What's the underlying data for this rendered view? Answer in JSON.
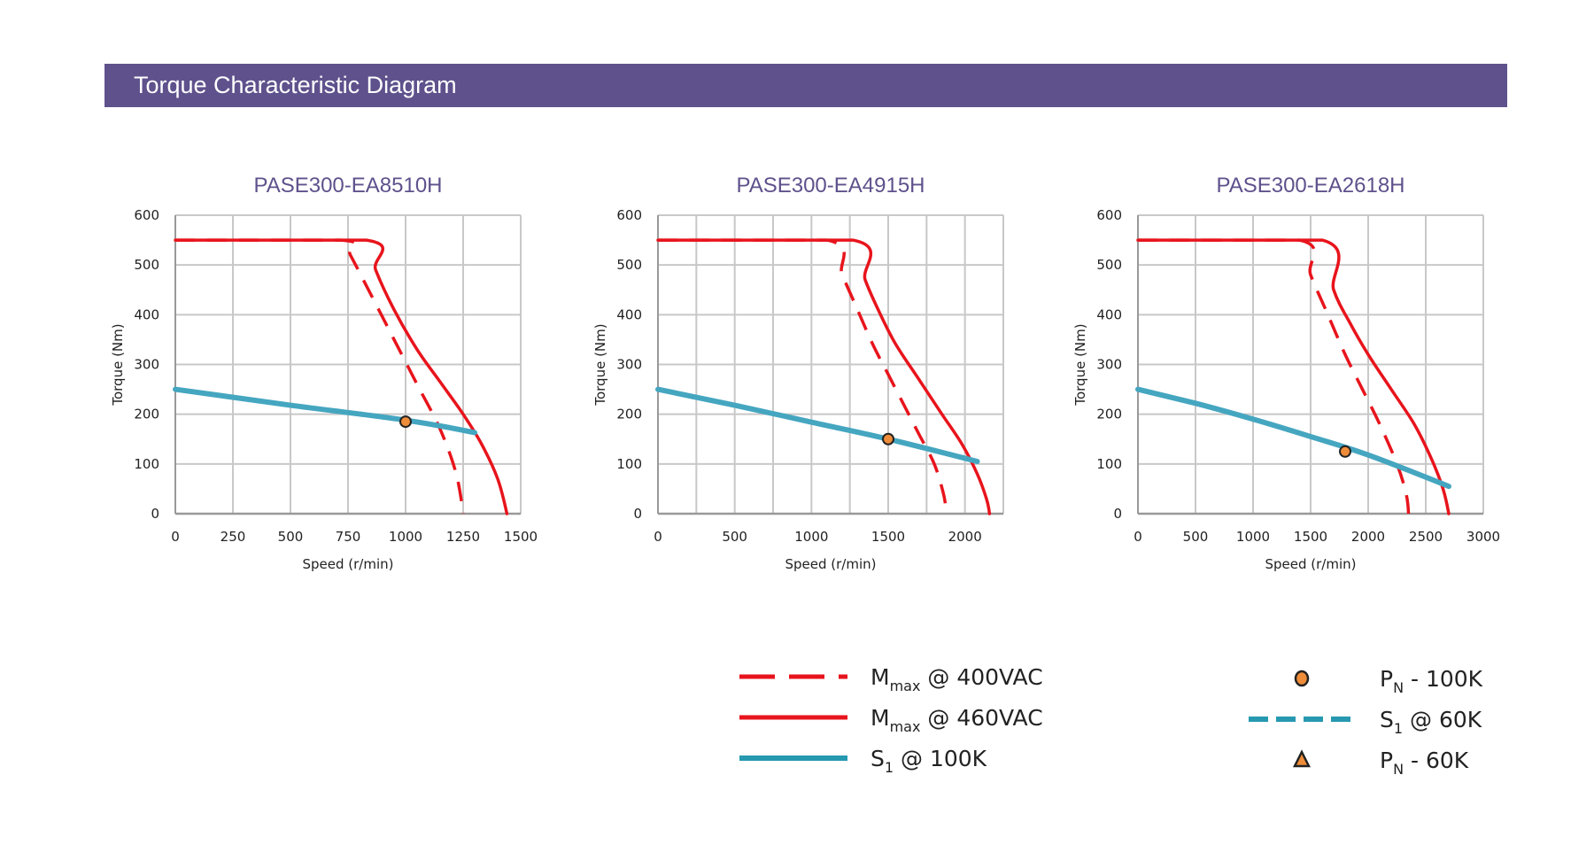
{
  "header": {
    "title": "Torque Characteristic Diagram"
  },
  "colors": {
    "banner": "#5f518c",
    "mmax": "#e8141c",
    "s1": "#45a6c0",
    "s1_60k": "#2699b0",
    "pn": "#ee8c3a",
    "grid": "#c8c8c8"
  },
  "chart_data": [
    {
      "type": "line",
      "title": "PASE300-EA8510H",
      "xlabel": "Speed (r/min)",
      "ylabel": "Torque (Nm)",
      "xlim": [
        0,
        1500
      ],
      "ylim": [
        0,
        600
      ],
      "grid": true,
      "xticks": [
        0,
        250,
        500,
        750,
        1000,
        1250,
        1500
      ],
      "xgrid_step": 250,
      "yticks": [
        0,
        100,
        200,
        300,
        400,
        500,
        600
      ],
      "series": [
        {
          "name": "Mmax @ 400VAC",
          "style": "dashed",
          "x": [
            0,
            720,
            760,
            850,
            950,
            1050,
            1150,
            1220,
            1250
          ],
          "y": [
            550,
            550,
            520,
            440,
            350,
            260,
            170,
            80,
            0
          ]
        },
        {
          "name": "Mmax @ 460VAC",
          "style": "solid",
          "x": [
            0,
            830,
            870,
            950,
            1050,
            1150,
            1250,
            1330,
            1400,
            1440
          ],
          "y": [
            550,
            550,
            490,
            410,
            330,
            265,
            200,
            140,
            70,
            0
          ]
        },
        {
          "name": "S1 @ 100K",
          "style": "solid",
          "x": [
            0,
            500,
            1000,
            1300
          ],
          "y": [
            250,
            218,
            188,
            163
          ]
        }
      ],
      "points": [
        {
          "name": "PN - 100K",
          "x": 1000,
          "y": 185
        }
      ]
    },
    {
      "type": "line",
      "title": "PASE300-EA4915H",
      "xlabel": "Speed (r/min)",
      "ylabel": "Torque (Nm)",
      "xlim": [
        0,
        2250
      ],
      "ylim": [
        0,
        600
      ],
      "grid": true,
      "xticks": [
        0,
        500,
        1000,
        1500,
        2000
      ],
      "xgrid_step": 250,
      "yticks": [
        0,
        100,
        200,
        300,
        400,
        500,
        600
      ],
      "series": [
        {
          "name": "Mmax @ 400VAC",
          "style": "dashed",
          "x": [
            0,
            1100,
            1200,
            1300,
            1400,
            1500,
            1600,
            1700,
            1800,
            1860,
            1880
          ],
          "y": [
            550,
            550,
            480,
            410,
            340,
            280,
            220,
            160,
            100,
            40,
            0
          ]
        },
        {
          "name": "Mmax @ 460VAC",
          "style": "solid",
          "x": [
            0,
            1270,
            1350,
            1450,
            1550,
            1700,
            1850,
            1980,
            2080,
            2140,
            2160
          ],
          "y": [
            550,
            550,
            470,
            400,
            340,
            270,
            200,
            140,
            80,
            30,
            0
          ]
        },
        {
          "name": "S1 @ 100K",
          "style": "solid",
          "x": [
            0,
            500,
            1000,
            1500,
            2080
          ],
          "y": [
            250,
            218,
            184,
            150,
            105
          ]
        }
      ],
      "points": [
        {
          "name": "PN - 100K",
          "x": 1500,
          "y": 150
        }
      ]
    },
    {
      "type": "line",
      "title": "PASE300-EA2618H",
      "xlabel": "Speed (r/min)",
      "ylabel": "Torque (Nm)",
      "xlim": [
        0,
        3000
      ],
      "ylim": [
        0,
        600
      ],
      "grid": true,
      "xticks": [
        0,
        500,
        1000,
        1500,
        2000,
        2500,
        3000
      ],
      "xgrid_step": 500,
      "yticks": [
        0,
        100,
        200,
        300,
        400,
        500,
        600
      ],
      "series": [
        {
          "name": "Mmax @ 400VAC",
          "style": "dashed",
          "x": [
            0,
            1400,
            1500,
            1650,
            1800,
            1950,
            2100,
            2250,
            2330,
            2350
          ],
          "y": [
            550,
            550,
            480,
            400,
            320,
            250,
            180,
            100,
            40,
            0
          ]
        },
        {
          "name": "Mmax @ 460VAC",
          "style": "solid",
          "x": [
            0,
            1600,
            1700,
            1850,
            2000,
            2200,
            2400,
            2550,
            2650,
            2700
          ],
          "y": [
            550,
            550,
            450,
            380,
            320,
            250,
            180,
            110,
            50,
            0
          ]
        },
        {
          "name": "S1 @ 100K",
          "style": "solid",
          "x": [
            0,
            500,
            1000,
            1500,
            2000,
            2700
          ],
          "y": [
            250,
            222,
            190,
            155,
            118,
            55
          ]
        }
      ],
      "points": [
        {
          "name": "PN - 100K",
          "x": 1800,
          "y": 125
        }
      ]
    }
  ],
  "legend": {
    "items": [
      {
        "main": "M",
        "sub": "max",
        "rest": " @ 400VAC",
        "kind": "red-dashed"
      },
      {
        "main": "M",
        "sub": "max",
        "rest": " @ 460VAC",
        "kind": "red-solid"
      },
      {
        "main": "S",
        "sub": "1",
        "rest": " @ 100K",
        "kind": "blue-solid"
      },
      {
        "main": "P",
        "sub": "N",
        "rest": " - 100K",
        "kind": "orange-dot"
      },
      {
        "main": "S",
        "sub": "1",
        "rest": " @ 60K",
        "kind": "blue-dashed"
      },
      {
        "main": "P",
        "sub": "N",
        "rest": " - 60K",
        "kind": "orange-triangle"
      }
    ]
  }
}
